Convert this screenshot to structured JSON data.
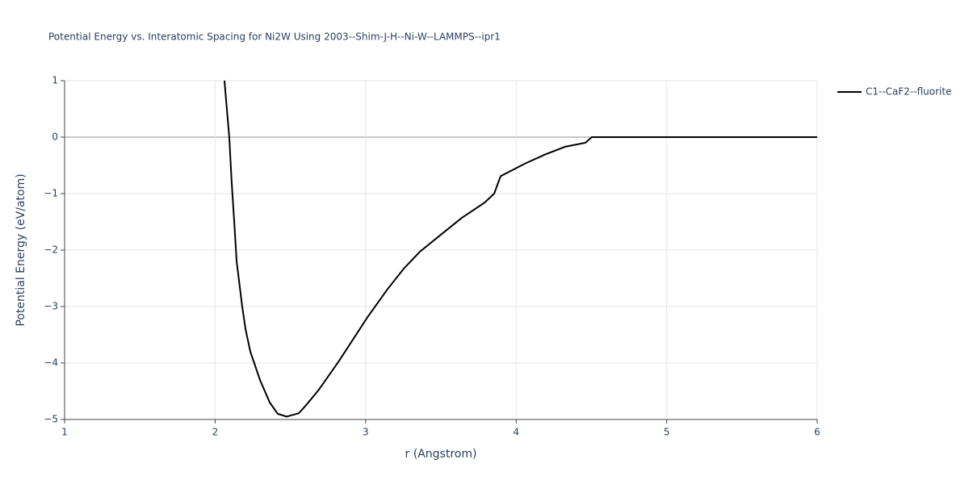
{
  "chart_data": {
    "type": "line",
    "title": "Potential Energy vs. Interatomic Spacing for Ni2W Using 2003--Shim-J-H--Ni-W--LAMMPS--ipr1",
    "x_label": "r (Angstrom)",
    "y_label": "Potential Energy (eV/atom)",
    "xlim": [
      1,
      6
    ],
    "ylim": [
      -5,
      1
    ],
    "xticks": [
      1,
      2,
      3,
      4,
      5,
      6
    ],
    "yticks": [
      {
        "value": -5,
        "label": "−5"
      },
      {
        "value": -4,
        "label": "−4"
      },
      {
        "value": -3,
        "label": "−3"
      },
      {
        "value": -2,
        "label": "−2"
      },
      {
        "value": -1,
        "label": "−1"
      },
      0,
      1
    ],
    "grid": true,
    "legend": "top-right",
    "x": [
      2.062,
      2.094,
      2.11,
      2.127,
      2.143,
      2.18,
      2.202,
      2.234,
      2.298,
      2.363,
      2.416,
      2.475,
      2.556,
      2.61,
      2.69,
      2.824,
      3.012,
      3.146,
      3.253,
      3.36,
      3.494,
      3.639,
      3.79,
      3.854,
      3.897,
      4.058,
      4.19,
      4.326,
      4.46,
      4.503,
      6
    ],
    "series": [
      {
        "name": "C1--CaF2--fluorite",
        "color": "#000000",
        "values": [
          1.0,
          0.0,
          -0.8,
          -1.5,
          -2.2,
          -3.0,
          -3.4,
          -3.8,
          -4.3,
          -4.7,
          -4.9,
          -4.95,
          -4.89,
          -4.73,
          -4.47,
          -3.96,
          -3.19,
          -2.69,
          -2.33,
          -2.03,
          -1.74,
          -1.43,
          -1.16,
          -1.0,
          -0.69,
          -0.47,
          -0.31,
          -0.17,
          -0.1,
          0.0,
          0.0
        ]
      }
    ]
  }
}
